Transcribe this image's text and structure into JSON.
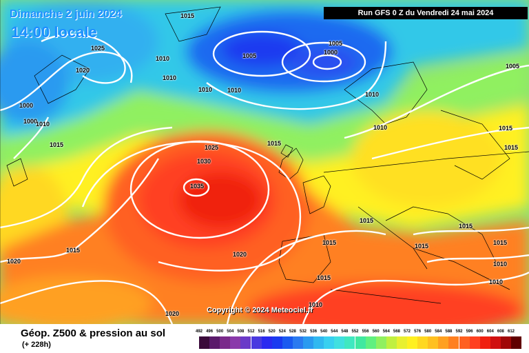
{
  "header": {
    "date": "Dimanche 2 juin 2024",
    "time": "14:00 locale",
    "run": "Run GFS 0 Z du Vendredi 24 mai 2024"
  },
  "copyright": "Copyright © 2024 Meteociel.fr",
  "footer": {
    "title": "Géop. Z500 & pression au sol",
    "subtitle": "(+ 228h)"
  },
  "isobar_labels": [
    "1015",
    "1025",
    "1020",
    "1010",
    "1010",
    "1005",
    "1005",
    "1000",
    "1000",
    "1000",
    "1010",
    "1015",
    "1010",
    "1010",
    "1010",
    "1010",
    "1005",
    "1025",
    "1030",
    "1035",
    "1015",
    "1015",
    "1015",
    "1015",
    "1015",
    "1015",
    "1015",
    "1020",
    "1020",
    "1020",
    "1015",
    "1010",
    "1010",
    "1015",
    "1010",
    "1015"
  ],
  "scale": {
    "labels": [
      "492",
      "496",
      "500",
      "504",
      "508",
      "512",
      "516",
      "520",
      "524",
      "528",
      "532",
      "536",
      "540",
      "544",
      "548",
      "552",
      "556",
      "560",
      "564",
      "568",
      "572",
      "576",
      "580",
      "584",
      "588",
      "592",
      "596",
      "600",
      "604",
      "608",
      "612"
    ],
    "colors": [
      "#3a0a3a",
      "#5a1a6a",
      "#7a2a8a",
      "#8a3aaa",
      "#6a3ac8",
      "#4a3ae0",
      "#2a2af0",
      "#1a3af0",
      "#1a5af0",
      "#2a7af0",
      "#2a9af0",
      "#30b8f0",
      "#38d0f0",
      "#40e0e0",
      "#40e8c0",
      "#40e8a0",
      "#60f080",
      "#90f060",
      "#c0f040",
      "#e8f030",
      "#fff020",
      "#ffd820",
      "#ffc020",
      "#ffa020",
      "#ff8020",
      "#ff6020",
      "#ff4020",
      "#f02010",
      "#d01010",
      "#a00808",
      "#600000"
    ]
  }
}
